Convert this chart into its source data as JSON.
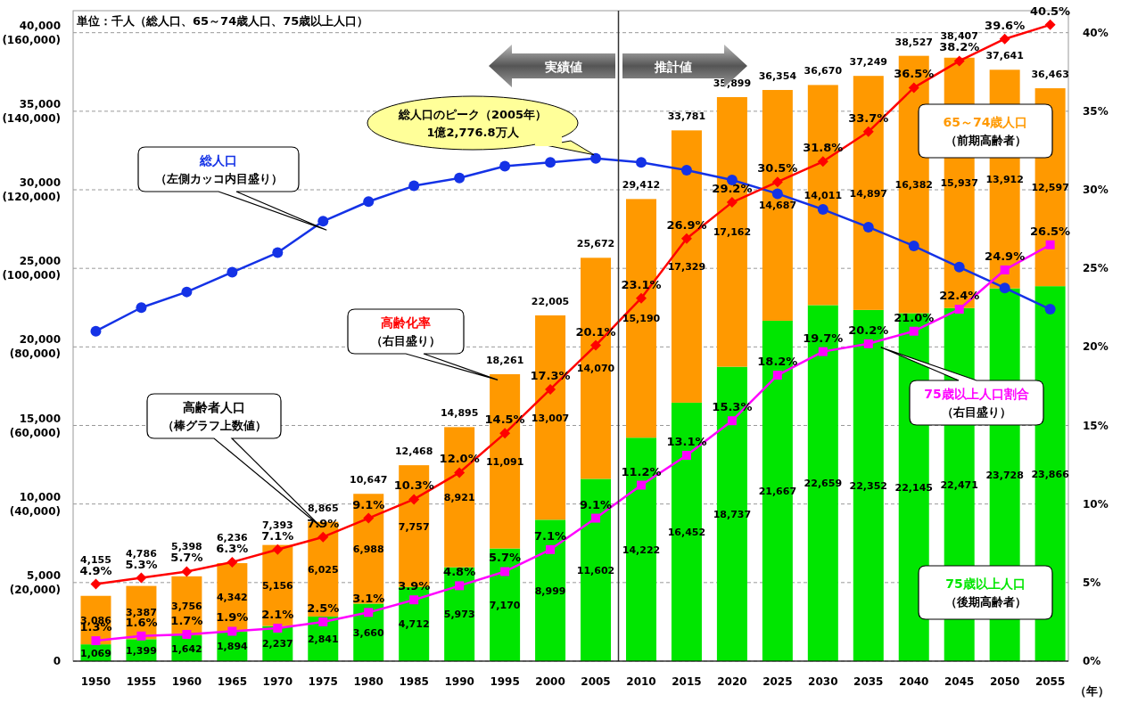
{
  "chart_data": {
    "type": "bar",
    "stacked": true,
    "x": [
      1950,
      1955,
      1960,
      1965,
      1970,
      1975,
      1980,
      1985,
      1990,
      1995,
      2000,
      2005,
      2010,
      2015,
      2020,
      2025,
      2030,
      2035,
      2040,
      2045,
      2050,
      2055
    ],
    "xlim": [
      1947.5,
      2057
    ],
    "xticks": [
      1950,
      1955,
      1960,
      1965,
      1970,
      1975,
      1980,
      1985,
      1990,
      1995,
      2000,
      2005,
      2010,
      2015,
      2020,
      2025,
      2030,
      2035,
      2040,
      2045,
      2050,
      2055
    ],
    "xlabel": "（年）",
    "ylim": [
      0,
      41400
    ],
    "yticks": [
      0,
      {
        "value": 5000,
        "label": "5,000"
      },
      {
        "value": 10000,
        "label": "10,000"
      },
      {
        "value": 15000,
        "label": "15,000"
      },
      {
        "value": 20000,
        "label": "20,000"
      },
      {
        "value": 25000,
        "label": "25,000"
      },
      {
        "value": 30000,
        "label": "30,000"
      },
      {
        "value": 35000,
        "label": "35,000"
      },
      {
        "value": 40000,
        "label": "40,000"
      }
    ],
    "y3lim": [
      0,
      165600
    ],
    "y3ticks": [
      {
        "value": 20000,
        "label": "(20,000)"
      },
      {
        "value": 40000,
        "label": "(40,000)"
      },
      {
        "value": 60000,
        "label": "(60,000)"
      },
      {
        "value": 80000,
        "label": "(80,000)"
      },
      {
        "value": 100000,
        "label": "(100,000)"
      },
      {
        "value": 120000,
        "label": "(120,000)"
      },
      {
        "value": 140000,
        "label": "(140,000)"
      },
      {
        "value": 160000,
        "label": "(160,000)"
      }
    ],
    "y2lim": [
      0,
      41.4
    ],
    "y2ticks": [
      {
        "value": 0,
        "label": "0%"
      },
      {
        "value": 5,
        "label": "5%"
      },
      {
        "value": 10,
        "label": "10%"
      },
      {
        "value": 15,
        "label": "15%"
      },
      {
        "value": 20,
        "label": "20%"
      },
      {
        "value": 25,
        "label": "25%"
      },
      {
        "value": 30,
        "label": "30%"
      },
      {
        "value": 35,
        "label": "35%"
      },
      {
        "value": 40,
        "label": "40%"
      }
    ],
    "grid": "y",
    "legend": false,
    "line_style": "solid",
    "series": [
      {
        "name": "75歳以上人口",
        "color": "#00e600",
        "values": [
          1069,
          1399,
          1642,
          1894,
          2237,
          2841,
          3660,
          4712,
          5973,
          7170,
          8999,
          11602,
          14222,
          16452,
          18737,
          21667,
          22659,
          22352,
          22145,
          22471,
          23728,
          23866
        ],
        "value_labels": [
          "1,069",
          "1,399",
          "1,642",
          "1,894",
          "2,237",
          "2,841",
          "3,660",
          "4,712",
          "5,973",
          "7,170",
          "8,999",
          "11,602",
          "14,222",
          "16,452",
          "18,737",
          "21,667",
          "22,659",
          "22,352",
          "22,145",
          "22,471",
          "23,728",
          "23,866"
        ]
      },
      {
        "name": "65～74歳人口",
        "color": "#ff9900",
        "values": [
          3086,
          3387,
          3756,
          4342,
          5156,
          6025,
          6988,
          7757,
          8921,
          11091,
          13007,
          14070,
          15190,
          17329,
          17162,
          14687,
          14011,
          14897,
          16382,
          15937,
          13912,
          12597
        ],
        "value_labels": [
          "3,086",
          "3,387",
          "3,756",
          "4,342",
          "5,156",
          "6,025",
          "6,988",
          "7,757",
          "8,921",
          "11,091",
          "13,007",
          "14,070",
          "15,190",
          "17,329",
          "17,162",
          "14,687",
          "14,011",
          "14,897",
          "16,382",
          "15,937",
          "13,912",
          "12,597"
        ]
      },
      {
        "name": "総人口",
        "type": "line",
        "axis": "y3",
        "color": "#1432e6",
        "marker": "circle",
        "values": [
          84000,
          90000,
          94000,
          99000,
          104000,
          112000,
          117000,
          121000,
          123000,
          126000,
          127000,
          128000,
          127000,
          125000,
          122500,
          119000,
          115000,
          110500,
          105700,
          100300,
          95000,
          89600
        ]
      },
      {
        "name": "高齢化率",
        "type": "line",
        "axis": "y2",
        "color": "#ff0000",
        "marker": "diamond",
        "values": [
          4.9,
          5.3,
          5.7,
          6.3,
          7.1,
          7.9,
          9.1,
          10.3,
          12.0,
          14.5,
          17.3,
          20.1,
          23.1,
          26.9,
          29.2,
          30.5,
          31.8,
          33.7,
          36.5,
          38.2,
          39.6,
          40.5
        ],
        "value_labels": [
          "4.9%",
          "5.3%",
          "5.7%",
          "6.3%",
          "7.1%",
          "7.9%",
          "9.1%",
          "10.3%",
          "12.0%",
          "14.5%",
          "17.3%",
          "20.1%",
          "23.1%",
          "26.9%",
          "29.2%",
          "30.5%",
          "31.8%",
          "33.7%",
          "36.5%",
          "38.2%",
          "39.6%",
          "40.5%"
        ]
      },
      {
        "name": "75歳以上人口割合",
        "type": "line",
        "axis": "y2",
        "color": "#ff00ff",
        "marker": "square",
        "values": [
          1.3,
          1.6,
          1.7,
          1.9,
          2.1,
          2.5,
          3.1,
          3.9,
          4.8,
          5.7,
          7.1,
          9.1,
          11.2,
          13.1,
          15.3,
          18.2,
          19.7,
          20.2,
          21.0,
          22.4,
          24.9,
          26.5
        ],
        "value_labels": [
          "1.3%",
          "1.6%",
          "1.7%",
          "1.9%",
          "2.1%",
          "2.5%",
          "3.1%",
          "3.9%",
          "4.8%",
          "5.7%",
          "7.1%",
          "9.1%",
          "11.2%",
          "13.1%",
          "15.3%",
          "18.2%",
          "19.7%",
          "20.2%",
          "21.0%",
          "22.4%",
          "24.9%",
          "26.5%"
        ]
      }
    ],
    "totals": [
      "4,155",
      "4,786",
      "5,398",
      "6,236",
      "7,393",
      "8,865",
      "10,647",
      "12,468",
      "14,895",
      "18,261",
      "22,005",
      "25,672",
      "29,412",
      "33,781",
      "35,899",
      "36,354",
      "36,670",
      "37,249",
      "38,527",
      "38,407",
      "37,641",
      "36,463"
    ],
    "ref_lines": [
      {
        "axis": "x",
        "value": 2007.5,
        "color": "#333333"
      }
    ],
    "annotations": [
      "単位：千人（総人口、65～74歳人口、75歳以上人口）",
      "総人口のピーク（2005年）",
      "1億2,776.8万人",
      "（左側カッコ内目盛り）",
      "（右目盛り）",
      "高齢者人口",
      "（棒グラフ上数値）",
      "（右目盛り）",
      "（前期高齢者）",
      "（後期高齢者）",
      "実績値",
      "推計値"
    ]
  }
}
